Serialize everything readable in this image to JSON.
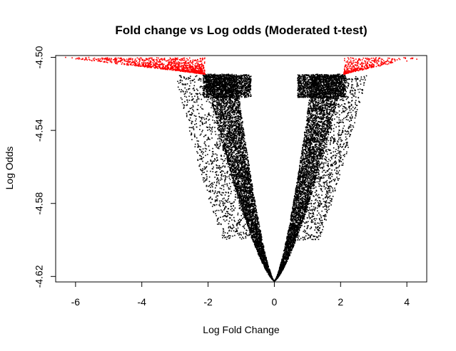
{
  "chart_data": {
    "type": "scatter",
    "title": "Fold change vs Log odds (Moderated t-test)",
    "xlabel": "Log Fold Change",
    "ylabel": "Log Odds",
    "xlim": [
      -6.6,
      4.6
    ],
    "ylim": [
      -4.623,
      -4.499
    ],
    "x_ticks": [
      -6,
      -4,
      -2,
      0,
      2,
      4
    ],
    "x_tick_labels": [
      "-6",
      "-4",
      "-2",
      "0",
      "2",
      "4"
    ],
    "y_ticks": [
      -4.5,
      -4.54,
      -4.58,
      -4.62
    ],
    "y_tick_labels": [
      "-4.50",
      "-4.54",
      "-4.58",
      "-4.62"
    ],
    "grid": false,
    "legend": "none",
    "series": [
      {
        "color": "#000000",
        "description_x": [
          -4.2,
          -3.5,
          -3.0,
          -2.5,
          -2.0,
          -1.5,
          -1.0,
          -0.5,
          0.0,
          0.5,
          1.0,
          1.5,
          2.0,
          2.5,
          3.0
        ],
        "x": [
          -4.2,
          -3.5,
          -3.0,
          -2.5,
          -2.0,
          -1.5,
          -1.0,
          -0.5,
          0.0,
          0.5,
          1.0,
          1.5,
          2.0,
          2.5,
          3.0
        ],
        "y": [
          -4.512,
          -4.515,
          -4.524,
          -4.538,
          -4.552,
          -4.568,
          -4.584,
          -4.603,
          -4.622,
          -4.603,
          -4.584,
          -4.568,
          -4.552,
          -4.536,
          -4.52
        ]
      },
      {
        "color": "#ff0000",
        "x": [
          -6.3,
          -5.6,
          -5.0,
          -4.5,
          -4.0,
          -3.5,
          -3.0,
          -2.5,
          -2.1,
          2.1,
          2.5,
          3.0,
          3.5,
          4.0,
          4.3
        ],
        "y": [
          -4.5,
          -4.5,
          -4.501,
          -4.502,
          -4.503,
          -4.504,
          -4.505,
          -4.507,
          -4.509,
          -4.509,
          -4.507,
          -4.505,
          -4.503,
          -4.502,
          -4.501
        ]
      }
    ]
  }
}
